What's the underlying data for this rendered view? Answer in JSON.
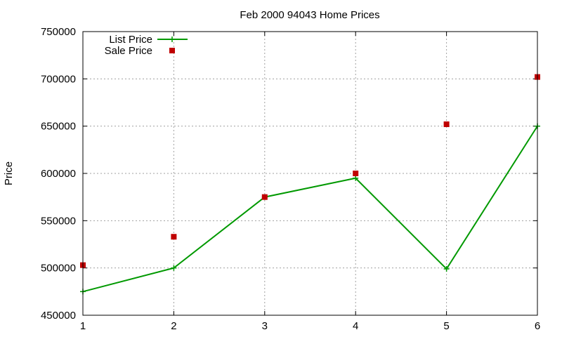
{
  "chart_data": {
    "type": "line",
    "title": "Feb 2000 94043 Home Prices",
    "xlabel": "",
    "ylabel": "Price",
    "x": [
      1,
      2,
      3,
      4,
      5,
      6
    ],
    "xlim": [
      1,
      6
    ],
    "ylim": [
      450000,
      750000
    ],
    "xticks": [
      "1",
      "2",
      "3",
      "4",
      "5",
      "6"
    ],
    "yticks": [
      "450000",
      "500000",
      "550000",
      "600000",
      "650000",
      "700000",
      "750000"
    ],
    "grid": true,
    "legend_position": "top-left",
    "series": [
      {
        "name": "List Price",
        "style": "line-with-plus-markers",
        "color": "#009900",
        "values": [
          475000,
          500000,
          575000,
          595000,
          499000,
          650000
        ]
      },
      {
        "name": "Sale Price",
        "style": "square-markers",
        "color": "#c00000",
        "values": [
          503000,
          533000,
          575000,
          600000,
          652000,
          702000
        ]
      }
    ]
  }
}
